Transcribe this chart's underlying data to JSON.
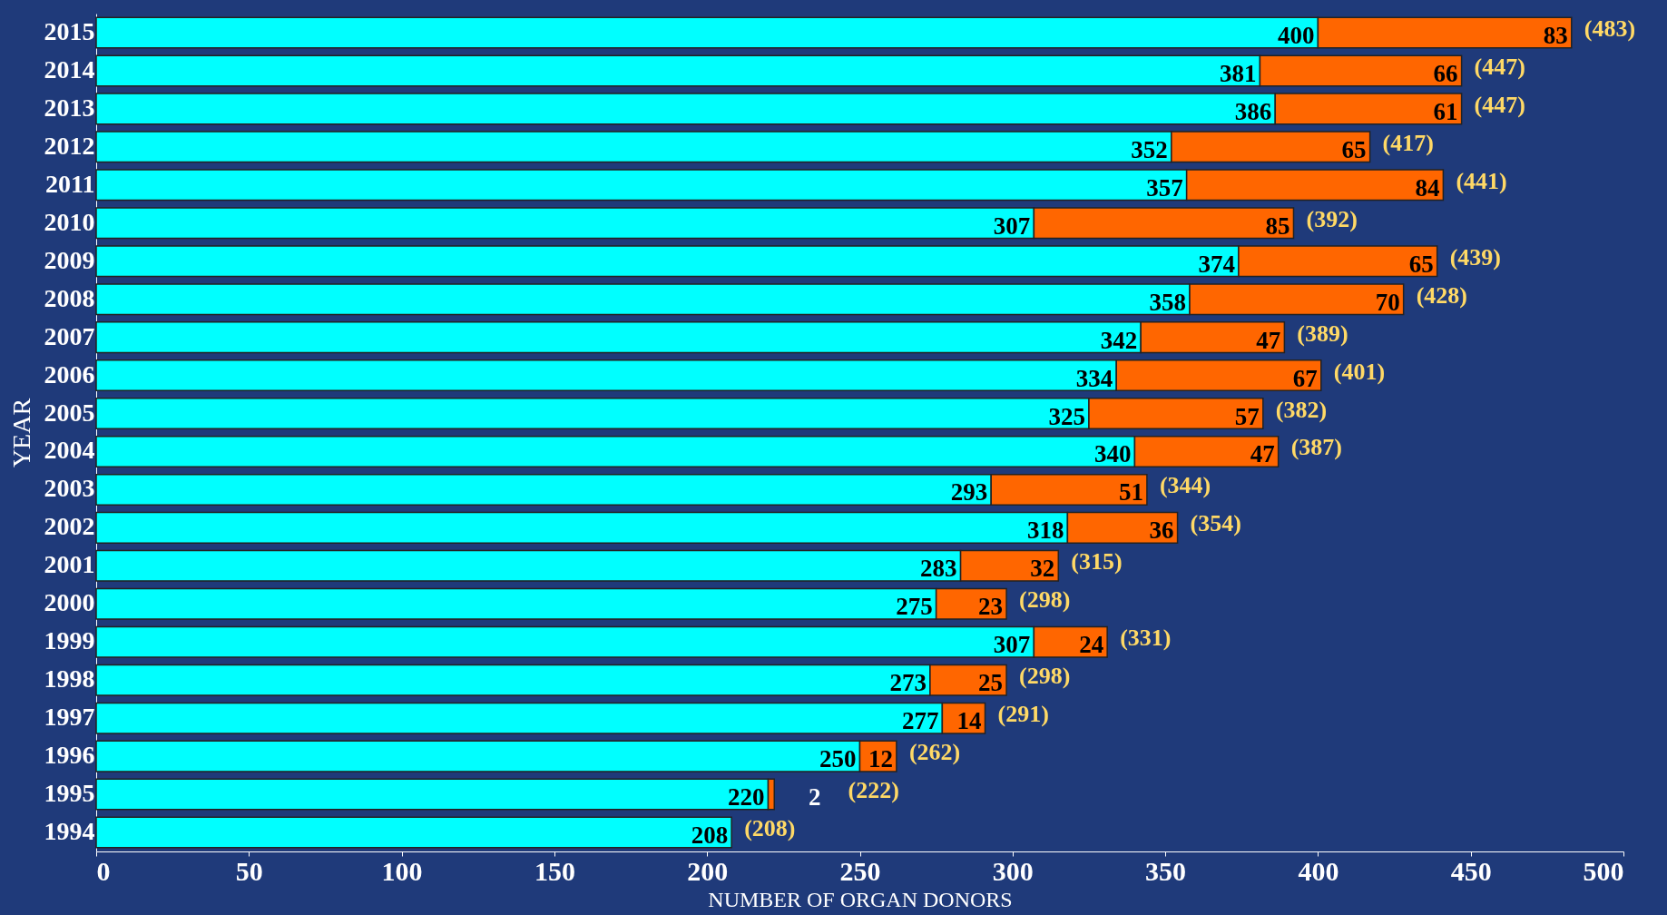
{
  "chart_data": {
    "type": "bar",
    "orientation": "horizontal",
    "stacked": true,
    "xlabel": "NUMBER OF ORGAN DONORS",
    "ylabel": "YEAR",
    "categories": [
      "2015",
      "2014",
      "2013",
      "2012",
      "2011",
      "2010",
      "2009",
      "2008",
      "2007",
      "2006",
      "2005",
      "2004",
      "2003",
      "2002",
      "2001",
      "2000",
      "1999",
      "1998",
      "1997",
      "1996",
      "1995",
      "1994"
    ],
    "series": [
      {
        "color": "#00ffff",
        "values": [
          400,
          381,
          386,
          352,
          357,
          307,
          374,
          358,
          342,
          334,
          325,
          340,
          293,
          318,
          283,
          275,
          307,
          273,
          277,
          250,
          220,
          208
        ]
      },
      {
        "color": "#ff6600",
        "values": [
          83,
          66,
          61,
          65,
          84,
          85,
          65,
          70,
          47,
          67,
          57,
          47,
          51,
          36,
          32,
          23,
          24,
          25,
          14,
          12,
          2,
          null
        ]
      }
    ],
    "totals": [
      "(483)",
      "(447)",
      "(447)",
      "(417)",
      "(441)",
      "(392)",
      "(439)",
      "(428)",
      "(389)",
      "(401)",
      "(382)",
      "(387)",
      "(344)",
      "(354)",
      "(315)",
      "(298)",
      "(331)",
      "(298)",
      "(291)",
      "(262)",
      "(222)",
      "(208)"
    ],
    "data_labels": true,
    "xlim": [
      0,
      500
    ],
    "xticks": [
      0,
      50,
      100,
      150,
      200,
      250,
      300,
      350,
      400,
      450,
      500
    ],
    "grid": false,
    "legend": false
  }
}
